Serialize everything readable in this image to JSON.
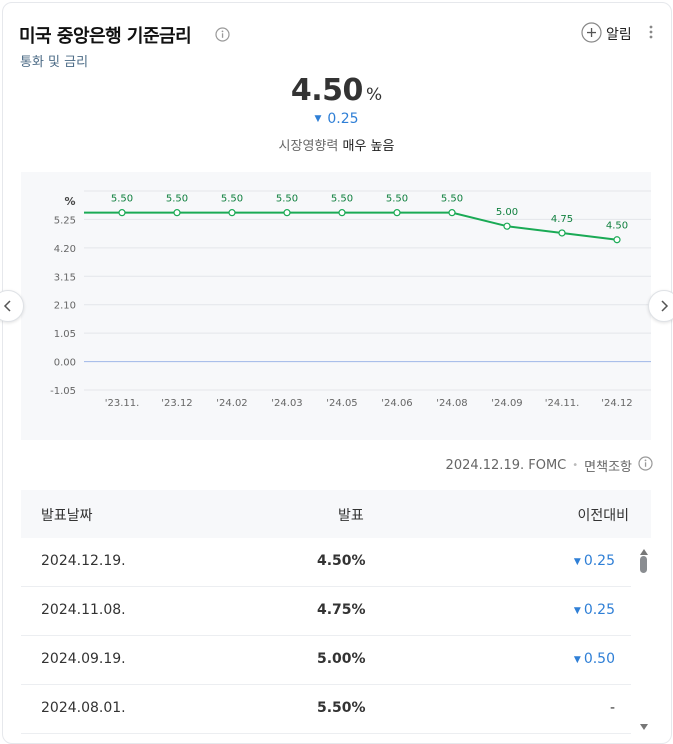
{
  "header": {
    "title": "미국 중앙은행 기준금리",
    "subtitle": "통화 및 금리",
    "alarm_label": "알림"
  },
  "summary": {
    "value": "4.50",
    "unit": "%",
    "change": "0.25",
    "change_direction": "down",
    "impact_label": "시장영향력",
    "impact_level": "매우 높음"
  },
  "chart_data": {
    "type": "line",
    "ylabel": "%",
    "y_ticks": [
      "5.25",
      "4.20",
      "3.15",
      "2.10",
      "1.05",
      "0.00",
      "-1.05"
    ],
    "y_tick_values": [
      5.25,
      4.2,
      3.15,
      2.1,
      1.05,
      0.0,
      -1.05
    ],
    "x": [
      "'23.11.",
      "'23.12",
      "'24.02",
      "'24.03",
      "'24.05",
      "'24.06",
      "'24.08",
      "'24.09",
      "'24.11.",
      "'24.12"
    ],
    "series": [
      {
        "values": [
          5.5,
          5.5,
          5.5,
          5.5,
          5.5,
          5.5,
          5.5,
          5.0,
          4.75,
          4.5
        ],
        "labels": [
          "5.50",
          "5.50",
          "5.50",
          "5.50",
          "5.50",
          "5.50",
          "5.50",
          "5.00",
          "4.75",
          "4.50"
        ]
      }
    ],
    "ylim": [
      -1.05,
      6.3
    ],
    "grid": true,
    "colors": {
      "line": "#1aaa55",
      "zero_line": "#9fb7e8"
    }
  },
  "footnote": {
    "date": "2024.12.19. FOMC",
    "disclaimer": "면책조항"
  },
  "table": {
    "headers": {
      "date": "발표날짜",
      "value": "발표",
      "change": "이전대비"
    },
    "rows": [
      {
        "date": "2024.12.19.",
        "value": "4.50%",
        "change": "0.25",
        "direction": "down"
      },
      {
        "date": "2024.11.08.",
        "value": "4.75%",
        "change": "0.25",
        "direction": "down"
      },
      {
        "date": "2024.09.19.",
        "value": "5.00%",
        "change": "0.50",
        "direction": "down"
      },
      {
        "date": "2024.08.01.",
        "value": "5.50%",
        "change": "-",
        "direction": "none"
      }
    ]
  },
  "icons": {
    "info": "info-circle-icon",
    "plus": "plus-circle-icon",
    "more": "kebab-menu-icon",
    "down": "triangle-down-icon"
  },
  "colors": {
    "accent_blue": "#2f7fd6",
    "line_green": "#1aaa55"
  }
}
